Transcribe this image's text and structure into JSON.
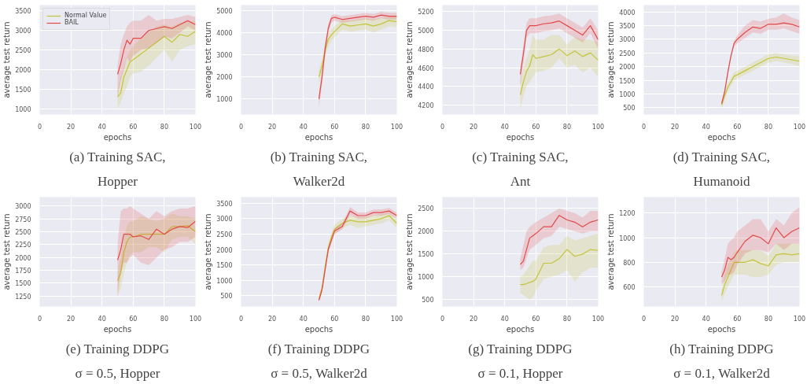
{
  "chart_data": [
    {
      "type": "line",
      "title": "(a) Training SAC,\nHopper",
      "xlabel": "epochs",
      "ylabel": "average test return",
      "xlim": [
        0,
        100
      ],
      "xticks": [
        0,
        20,
        40,
        60,
        80,
        100
      ],
      "ylim": [
        850,
        3650
      ],
      "yticks": [
        1000,
        1500,
        2000,
        2500,
        3000,
        3500
      ],
      "grid": true,
      "legend": "top left",
      "x": [
        50,
        52,
        54,
        56,
        58,
        60,
        65,
        70,
        75,
        80,
        85,
        90,
        95,
        100
      ],
      "series": [
        {
          "name": "Normal Value",
          "color": "#c4c43a",
          "values": [
            1300,
            1400,
            1800,
            2000,
            2200,
            2250,
            2400,
            2550,
            2700,
            2850,
            2700,
            2900,
            2850,
            2980
          ],
          "lower": [
            1000,
            1150,
            1400,
            1550,
            1800,
            1900,
            1950,
            2100,
            2300,
            2500,
            2200,
            2500,
            2600,
            2650
          ],
          "upper": [
            1500,
            1800,
            2100,
            2300,
            2500,
            2600,
            2800,
            2950,
            3100,
            3150,
            3100,
            3200,
            3200,
            3250
          ]
        },
        {
          "name": "BAIL",
          "color": "#e24a4a",
          "values": [
            1880,
            2150,
            2500,
            2750,
            2650,
            2800,
            2800,
            3000,
            3050,
            3100,
            3050,
            3150,
            3250,
            3150
          ],
          "lower": [
            1300,
            1700,
            2000,
            2300,
            2200,
            2350,
            2500,
            2550,
            2700,
            2850,
            2800,
            2950,
            3100,
            3000
          ],
          "upper": [
            2100,
            2650,
            2900,
            3100,
            3200,
            3250,
            3250,
            3400,
            3250,
            3300,
            3300,
            3350,
            3400,
            3350
          ]
        }
      ]
    },
    {
      "type": "line",
      "title": "(b) Training SAC,\nWalker2d",
      "xlabel": "epochs",
      "ylabel": "average test return",
      "xlim": [
        0,
        100
      ],
      "xticks": [
        0,
        20,
        40,
        60,
        80,
        100
      ],
      "ylim": [
        300,
        5250
      ],
      "yticks": [
        1000,
        2000,
        3000,
        4000,
        5000
      ],
      "grid": true,
      "x": [
        50,
        52,
        54,
        56,
        58,
        60,
        65,
        70,
        75,
        80,
        85,
        90,
        95,
        100
      ],
      "series": [
        {
          "color": "#c4c43a",
          "values": [
            2000,
            2500,
            3200,
            3700,
            3900,
            4050,
            4400,
            4300,
            4350,
            4400,
            4300,
            4400,
            4550,
            4500
          ],
          "lower": [
            1700,
            2200,
            2900,
            3400,
            3650,
            3800,
            4150,
            4050,
            4100,
            4150,
            4000,
            4150,
            4300,
            4250
          ],
          "upper": [
            2300,
            2800,
            3500,
            4000,
            4150,
            4300,
            4600,
            4550,
            4600,
            4650,
            4600,
            4650,
            4750,
            4750
          ]
        },
        {
          "color": "#e24a4a",
          "values": [
            1000,
            2000,
            3300,
            4200,
            4650,
            4700,
            4600,
            4650,
            4700,
            4750,
            4700,
            4800,
            4750,
            4750
          ],
          "lower": [
            600,
            1700,
            3000,
            4000,
            4450,
            4550,
            4450,
            4500,
            4550,
            4600,
            4550,
            4650,
            4600,
            4600
          ],
          "upper": [
            1300,
            2300,
            3600,
            4400,
            4800,
            4850,
            4750,
            4800,
            4850,
            4900,
            4850,
            4950,
            4900,
            4900
          ]
        }
      ]
    },
    {
      "type": "line",
      "title": "(c) Training SAC,\nAnt",
      "xlabel": "epochs",
      "ylabel": "average test return",
      "xlim": [
        0,
        100
      ],
      "xticks": [
        0,
        20,
        40,
        60,
        80,
        100
      ],
      "ylim": [
        4100,
        5270
      ],
      "yticks": [
        4200,
        4400,
        4600,
        4800,
        5000,
        5200
      ],
      "grid": true,
      "x": [
        50,
        52,
        54,
        56,
        58,
        60,
        65,
        70,
        75,
        80,
        85,
        90,
        95,
        100
      ],
      "series": [
        {
          "color": "#c4c43a",
          "values": [
            4310,
            4450,
            4560,
            4620,
            4740,
            4700,
            4720,
            4740,
            4800,
            4730,
            4780,
            4720,
            4760,
            4680
          ],
          "lower": [
            4150,
            4300,
            4400,
            4450,
            4500,
            4550,
            4570,
            4600,
            4700,
            4600,
            4630,
            4550,
            4600,
            4500
          ],
          "upper": [
            4450,
            4600,
            4700,
            4800,
            4950,
            4900,
            4900,
            4950,
            4950,
            4850,
            4930,
            4900,
            4900,
            4870
          ]
        },
        {
          "color": "#e24a4a",
          "values": [
            4530,
            4750,
            5000,
            5050,
            5050,
            5050,
            5070,
            5080,
            5100,
            5050,
            5000,
            4950,
            5050,
            4900
          ],
          "lower": [
            4400,
            4650,
            4920,
            4970,
            4970,
            4970,
            4990,
            5000,
            5020,
            4970,
            4920,
            4870,
            4970,
            4800
          ],
          "upper": [
            4600,
            4850,
            5080,
            5130,
            5130,
            5130,
            5150,
            5160,
            5180,
            5130,
            5080,
            5030,
            5130,
            5000
          ]
        }
      ]
    },
    {
      "type": "line",
      "title": "(d) Training SAC,\nHumanoid",
      "xlabel": "epochs",
      "ylabel": "average test return",
      "xlim": [
        0,
        100
      ],
      "xticks": [
        0,
        20,
        40,
        60,
        80,
        100
      ],
      "ylim": [
        250,
        4250
      ],
      "yticks": [
        500,
        1000,
        1500,
        2000,
        2500,
        3000,
        3500,
        4000
      ],
      "grid": true,
      "x": [
        50,
        52,
        54,
        56,
        58,
        60,
        65,
        70,
        75,
        80,
        85,
        90,
        95,
        100
      ],
      "series": [
        {
          "color": "#c4c43a",
          "values": [
            600,
            950,
            1250,
            1450,
            1650,
            1700,
            1850,
            2000,
            2150,
            2300,
            2350,
            2300,
            2250,
            2200
          ],
          "lower": [
            450,
            800,
            1100,
            1300,
            1500,
            1550,
            1700,
            1850,
            2000,
            2150,
            2200,
            2150,
            2100,
            2000
          ],
          "upper": [
            700,
            1100,
            1400,
            1600,
            1800,
            1850,
            2000,
            2150,
            2300,
            2450,
            2500,
            2450,
            2400,
            2400
          ]
        },
        {
          "color": "#e24a4a",
          "values": [
            650,
            1100,
            1800,
            2400,
            2850,
            3000,
            3250,
            3450,
            3400,
            3550,
            3550,
            3600,
            3550,
            3450
          ],
          "lower": [
            550,
            1000,
            1700,
            2300,
            2750,
            2850,
            3050,
            3250,
            3200,
            3350,
            3350,
            3400,
            3300,
            3200
          ],
          "upper": [
            750,
            1200,
            1900,
            2500,
            2950,
            3150,
            3500,
            3700,
            3650,
            3750,
            3800,
            3950,
            3800,
            3700
          ]
        }
      ]
    },
    {
      "type": "line",
      "title": "(e) Training DDPG\nσ = 0.5, Hopper",
      "xlabel": "epochs",
      "ylabel": "average test return",
      "xlim": [
        0,
        100
      ],
      "xticks": [
        0,
        20,
        40,
        60,
        80,
        100
      ],
      "ylim": [
        1050,
        3170
      ],
      "yticks": [
        1250,
        1500,
        1750,
        2000,
        2250,
        2500,
        2750,
        3000
      ],
      "grid": true,
      "x": [
        50,
        52,
        54,
        56,
        58,
        60,
        65,
        70,
        75,
        80,
        85,
        90,
        95,
        100
      ],
      "series": [
        {
          "color": "#c4c43a",
          "values": [
            1550,
            1700,
            2100,
            2300,
            2400,
            2400,
            2450,
            2450,
            2450,
            2450,
            2600,
            2600,
            2620,
            2500
          ],
          "lower": [
            1250,
            1400,
            1700,
            1900,
            2050,
            2100,
            2100,
            2200,
            2200,
            2100,
            2350,
            2400,
            2400,
            2250
          ],
          "upper": [
            1750,
            2000,
            2400,
            2600,
            2700,
            2700,
            2800,
            2750,
            2700,
            2750,
            2850,
            2800,
            2800,
            2750
          ]
        },
        {
          "color": "#e24a4a",
          "values": [
            1950,
            2150,
            2450,
            2450,
            2450,
            2400,
            2420,
            2350,
            2550,
            2450,
            2550,
            2600,
            2580,
            2700
          ],
          "lower": [
            1250,
            1700,
            1900,
            1900,
            2000,
            2050,
            1900,
            1850,
            2000,
            2150,
            2200,
            2300,
            2300,
            2400
          ],
          "upper": [
            2250,
            2900,
            2950,
            2950,
            3000,
            2950,
            2850,
            2750,
            2900,
            2800,
            2900,
            2950,
            2950,
            3000
          ]
        }
      ]
    },
    {
      "type": "line",
      "title": "(f) Training DDPG\nσ = 0.5, Walker2d",
      "xlabel": "epochs",
      "ylabel": "average test return",
      "xlim": [
        0,
        100
      ],
      "xticks": [
        0,
        20,
        40,
        60,
        80,
        100
      ],
      "ylim": [
        150,
        3700
      ],
      "yticks": [
        500,
        1000,
        1500,
        2000,
        2500,
        3000,
        3500
      ],
      "grid": true,
      "x": [
        50,
        52,
        54,
        56,
        58,
        60,
        65,
        70,
        75,
        80,
        85,
        90,
        95,
        100
      ],
      "series": [
        {
          "color": "#c4c43a",
          "values": [
            400,
            750,
            1450,
            2050,
            2400,
            2650,
            2850,
            2950,
            2900,
            2900,
            2950,
            3000,
            3100,
            2850
          ],
          "lower": [
            300,
            600,
            1300,
            1900,
            2250,
            2500,
            2700,
            2800,
            2700,
            2750,
            2800,
            2850,
            2950,
            2700
          ],
          "upper": [
            500,
            900,
            1600,
            2200,
            2550,
            2800,
            3000,
            3100,
            3050,
            3050,
            3100,
            3150,
            3200,
            3000
          ]
        },
        {
          "color": "#e24a4a",
          "values": [
            350,
            700,
            1350,
            2000,
            2300,
            2600,
            2750,
            3250,
            3100,
            3100,
            3200,
            3200,
            3250,
            3100
          ],
          "lower": [
            300,
            600,
            1250,
            1900,
            2200,
            2500,
            2650,
            3120,
            3000,
            3000,
            3100,
            3100,
            3150,
            3000
          ],
          "upper": [
            400,
            800,
            1450,
            2100,
            2400,
            2700,
            2850,
            3380,
            3200,
            3200,
            3300,
            3300,
            3350,
            3200
          ]
        }
      ]
    },
    {
      "type": "line",
      "title": "(g) Training DDPG\nσ = 0.1, Hopper",
      "xlabel": "epochs",
      "ylabel": "average test return",
      "xlim": [
        0,
        100
      ],
      "xticks": [
        0,
        20,
        40,
        60,
        80,
        100
      ],
      "ylim": [
        350,
        2750
      ],
      "yticks": [
        500,
        1000,
        1500,
        2000,
        2500
      ],
      "grid": true,
      "x": [
        50,
        52,
        54,
        56,
        58,
        60,
        65,
        70,
        75,
        80,
        85,
        90,
        95,
        100
      ],
      "series": [
        {
          "color": "#c4c43a",
          "values": [
            830,
            830,
            850,
            880,
            900,
            950,
            1300,
            1300,
            1400,
            1600,
            1450,
            1500,
            1600,
            1580
          ],
          "lower": [
            650,
            600,
            550,
            500,
            550,
            700,
            950,
            1000,
            1050,
            1150,
            900,
            1100,
            1200,
            1200
          ],
          "upper": [
            1000,
            1050,
            1150,
            1250,
            1350,
            1350,
            1650,
            1700,
            1700,
            1900,
            1800,
            1850,
            1900,
            1950
          ]
        },
        {
          "color": "#e24a4a",
          "values": [
            1270,
            1350,
            1600,
            1850,
            1900,
            1950,
            2100,
            2100,
            2350,
            2250,
            2200,
            2100,
            2200,
            2250
          ],
          "lower": [
            1150,
            1200,
            1400,
            1600,
            1650,
            1700,
            1850,
            1900,
            2100,
            2050,
            2000,
            1950,
            2000,
            2000
          ],
          "upper": [
            1400,
            1700,
            2000,
            2100,
            2150,
            2200,
            2300,
            2400,
            2500,
            2450,
            2400,
            2300,
            2450,
            2450
          ]
        }
      ]
    },
    {
      "type": "line",
      "title": "(h) Training DDPG\nσ = 0.1, Walker2d",
      "xlabel": "epochs",
      "ylabel": "average test return",
      "xlim": [
        0,
        100
      ],
      "xticks": [
        0,
        20,
        40,
        60,
        80,
        100
      ],
      "ylim": [
        440,
        1330
      ],
      "yticks": [
        600,
        800,
        1000,
        1200
      ],
      "grid": true,
      "x": [
        50,
        52,
        54,
        56,
        58,
        60,
        65,
        70,
        75,
        80,
        85,
        90,
        95,
        100
      ],
      "series": [
        {
          "color": "#c4c43a",
          "values": [
            530,
            620,
            680,
            740,
            800,
            800,
            800,
            820,
            790,
            770,
            860,
            870,
            860,
            870
          ],
          "lower": [
            480,
            550,
            600,
            650,
            700,
            700,
            700,
            680,
            680,
            700,
            780,
            800,
            800,
            800
          ],
          "upper": [
            570,
            700,
            780,
            830,
            880,
            900,
            900,
            900,
            900,
            850,
            950,
            950,
            950,
            950
          ]
        },
        {
          "color": "#e24a4a",
          "values": [
            680,
            740,
            840,
            820,
            840,
            880,
            970,
            1020,
            1000,
            950,
            1080,
            1000,
            1050,
            1080
          ],
          "lower": [
            620,
            650,
            700,
            700,
            720,
            780,
            870,
            900,
            900,
            880,
            950,
            900,
            950,
            950
          ],
          "upper": [
            720,
            830,
            950,
            980,
            1000,
            1050,
            1100,
            1150,
            1150,
            1050,
            1150,
            1100,
            1200,
            1250
          ]
        }
      ]
    }
  ]
}
